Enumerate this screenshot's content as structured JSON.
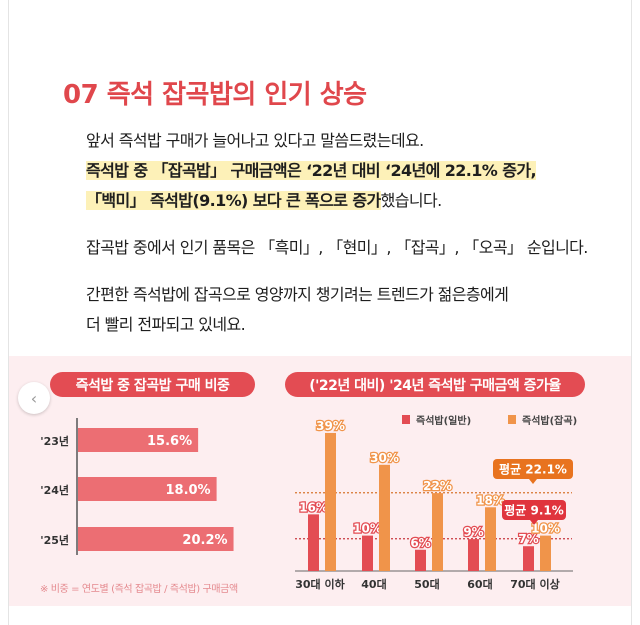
{
  "title": "07  즉석 잡곡밥의 인기 상승",
  "body": {
    "line1": "앞서 즉석밥 구매가 늘어나고 있다고 말씀드렸는데요.",
    "line2": "즉석밥 중 「잡곡밥」 구매금액은 ‘22년 대비 ‘24년에 22.1% 증가,",
    "line3_hl": "「백미」 즉석밥(9.1%) 보다 큰 폭으로 증가",
    "line3_rest": "했습니다.",
    "line4": "잡곡밥 중에서 인기 품목은 「흑미」, 「현미」, 「잡곡」, 「오곡」 순입니다.",
    "line5": "간편한 즉석밥에 잡곡으로 영양까지 챙기려는 트렌드가 젊은층에게",
    "line6": "더 빨리 전파되고 있네요."
  },
  "nav": {
    "prev_icon": "chevron-left-icon",
    "prev_glyph": "‹"
  },
  "colors": {
    "accent": "#e0474c",
    "bar_red": "#e34c53",
    "bar_orange": "#f0944a",
    "left_bar": "#ec6e73",
    "bg": "#fdeef0"
  },
  "chart_data": [
    {
      "type": "bar",
      "orientation": "horizontal",
      "title": "즉석밥 중 잡곡밥 구매 비중",
      "categories": [
        "'23년",
        "'24년",
        "'25년"
      ],
      "values": [
        15.6,
        18.0,
        20.2
      ],
      "labels": [
        "15.6%",
        "18.0%",
        "20.2%"
      ],
      "note": "※ 비중 = 연도별 (즉석 잡곡밥 / 즉석밥) 구매금액"
    },
    {
      "type": "bar",
      "title": "('22년 대비) '24년 즉석밥 구매금액 증가율",
      "categories": [
        "30대 이하",
        "40대",
        "50대",
        "60대",
        "70대 이상"
      ],
      "legend_position": "top-right",
      "series": [
        {
          "name": "즉석밥(일반)",
          "values": [
            16,
            10,
            6,
            9,
            7
          ],
          "labels": [
            "16%",
            "10%",
            "6%",
            "9%",
            "7%"
          ]
        },
        {
          "name": "즉석밥(잡곡)",
          "values": [
            39,
            30,
            22,
            18,
            10
          ],
          "labels": [
            "39%",
            "30%",
            "22%",
            "18%",
            "10%"
          ]
        }
      ],
      "averages": [
        {
          "label": "평균 22.1%",
          "value": 22.1,
          "series": "즉석밥(잡곡)"
        },
        {
          "label": "평균 9.1%",
          "value": 9.1,
          "series": "즉석밥(일반)"
        }
      ]
    }
  ]
}
